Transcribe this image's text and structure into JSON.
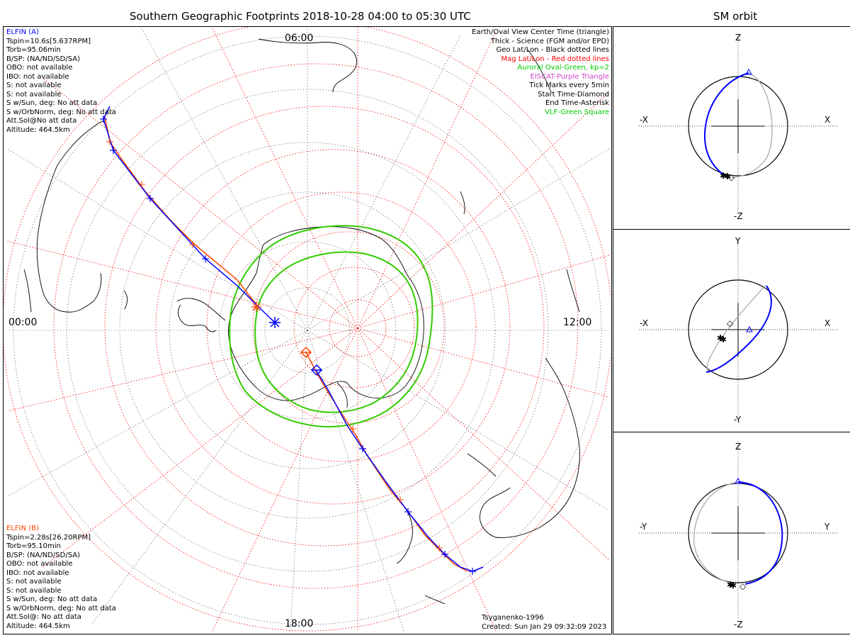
{
  "main_title": "Southern Geographic Footprints 2018-10-28 04:00 to 05:30 UTC",
  "orbit_title": "SM orbit",
  "map": {
    "local_times": {
      "top": "06:00",
      "left": "00:00",
      "right": "12:00",
      "bottom": "18:00"
    }
  },
  "sat_a": {
    "name": "ELFIN (A)",
    "color": "#0000ff",
    "lines": [
      "Tspin=10.6s[5.637RPM]",
      "Torb=95.06min",
      "B/SP: (NA/ND/SD/SA)",
      "OBO: not available",
      "IBO: not available",
      "S: not available",
      "S: not available",
      "S w/Sun, deg: No att data",
      "S w/OrbNorm, deg: No att data",
      "Att.Sol@No att data",
      "Altitude: 464.5km"
    ]
  },
  "sat_b": {
    "name": "ELFIN (B)",
    "color": "#ff4500",
    "lines": [
      "Tspin=2.28s[26.20RPM]",
      "Torb=95.10min",
      "B/SP: (NA/ND/SD/SA)",
      "OBO: not available",
      "IBO: not available",
      "S: not available",
      "S: not available",
      "S w/Sun, deg: No att data",
      "S w/OrbNorm, deg: No att data",
      "Att.Sol@: No att data",
      "Altitude: 464.5km"
    ]
  },
  "legend": [
    {
      "text": "Earth/Oval View Center Time (triangle)",
      "color": "#000000"
    },
    {
      "text": "Thick - Science (FGM and/or EPD)",
      "color": "#000000"
    },
    {
      "text": "Geo Lat/Lon - Black dotted lines",
      "color": "#000000"
    },
    {
      "text": "Mag Lat/Lon - Red dotted lines",
      "color": "#ff0000"
    },
    {
      "text": "Auroral Oval-Green, kp=2",
      "color": "#00cc00"
    },
    {
      "text": "EISCAT-Purple Triangle",
      "color": "#cc44cc"
    },
    {
      "text": "Tick Marks every 5min",
      "color": "#000000"
    },
    {
      "text": "Start Time-Diamond",
      "color": "#000000"
    },
    {
      "text": "End Time-Asterisk",
      "color": "#000000"
    },
    {
      "text": "VLF-Green Square",
      "color": "#00cc00"
    }
  ],
  "credit": {
    "model": "Tsyganenko-1996",
    "created": "Created: Sun Jan 29 09:32:09 2023"
  },
  "orbit_panels": [
    {
      "top": "Z",
      "bottom": "-Z",
      "left": "-X",
      "right": "X"
    },
    {
      "top": "Y",
      "bottom": "-Y",
      "left": "-X",
      "right": "X"
    },
    {
      "top": "Z",
      "bottom": "-Z",
      "left": "-Y",
      "right": "Y"
    }
  ],
  "colors": {
    "elfin_a": "#0000ff",
    "elfin_b": "#ff4500",
    "mag_grid": "#ff0000",
    "auroral_oval": "#33cc00",
    "geo_grid": "#000000",
    "orbit_back": "#aaaaaa"
  }
}
